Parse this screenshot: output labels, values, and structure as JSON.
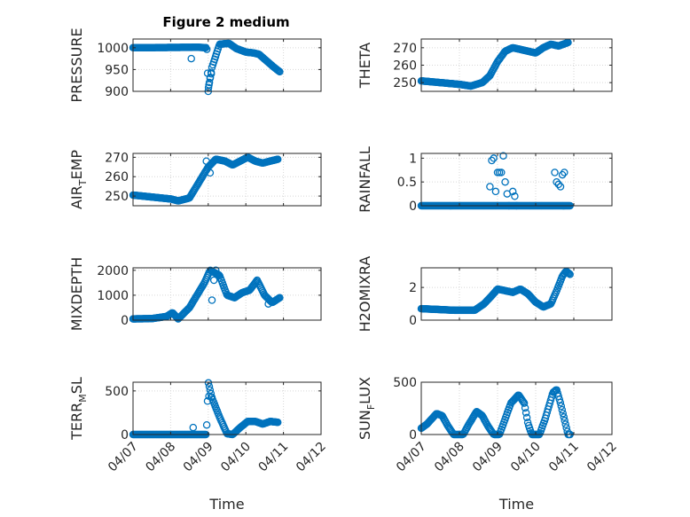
{
  "figure": {
    "title": "Figure 2 medium",
    "marker_color": "#0072BD"
  },
  "chart_data": [
    {
      "type": "scatter",
      "title": "Figure 2 medium",
      "ylabel": "PRESSURE",
      "ylabel_main": "PRESSURE",
      "ylabel_sub": "",
      "ylabel_tail": "",
      "xlabel": "",
      "xlim": [
        0,
        5
      ],
      "ylim": [
        900,
        1020
      ],
      "yticks": [
        900,
        950,
        1000
      ],
      "xticks": [
        "04/07",
        "04/08",
        "04/09",
        "04/10",
        "04/11",
        "04/12"
      ],
      "grid": true,
      "x_tick_labels_shown": false,
      "keys": [
        [
          0,
          1000
        ],
        [
          1.6,
          1001
        ],
        [
          1.75,
          1001
        ],
        [
          1.96,
          1000
        ],
        [
          2.0,
          905
        ],
        [
          2.1,
          955
        ],
        [
          2.3,
          1008
        ],
        [
          2.55,
          1010
        ],
        [
          2.75,
          998
        ],
        [
          3.0,
          990
        ],
        [
          3.2,
          988
        ],
        [
          3.35,
          985
        ],
        [
          3.55,
          970
        ],
        [
          3.75,
          955
        ],
        [
          3.9,
          945
        ]
      ],
      "extra": [
        [
          1.55,
          975
        ],
        [
          2.02,
          915
        ],
        [
          2.05,
          930
        ],
        [
          2.0,
          900
        ],
        [
          2.08,
          940
        ]
      ]
    },
    {
      "type": "scatter",
      "title": "",
      "ylabel": "THETA",
      "ylabel_main": "THETA",
      "ylabel_sub": "",
      "ylabel_tail": "",
      "xlabel": "",
      "xlim": [
        0,
        5
      ],
      "ylim": [
        245,
        275
      ],
      "yticks": [
        250,
        260,
        270
      ],
      "xticks": [
        "04/07",
        "04/08",
        "04/09",
        "04/10",
        "04/11",
        "04/12"
      ],
      "grid": true,
      "x_tick_labels_shown": false,
      "keys": [
        [
          0,
          251
        ],
        [
          0.5,
          250
        ],
        [
          1.0,
          249
        ],
        [
          1.3,
          248
        ],
        [
          1.6,
          250
        ],
        [
          1.8,
          254
        ],
        [
          2.0,
          262
        ],
        [
          2.2,
          268
        ],
        [
          2.4,
          270
        ],
        [
          2.6,
          269
        ],
        [
          2.8,
          268
        ],
        [
          3.0,
          267
        ],
        [
          3.2,
          270
        ],
        [
          3.4,
          272
        ],
        [
          3.6,
          271
        ],
        [
          3.85,
          273
        ]
      ],
      "extra": []
    },
    {
      "type": "scatter",
      "title": "",
      "ylabel": "AIR_TEMP",
      "ylabel_main": "AIR",
      "ylabel_sub": "T",
      "ylabel_tail": "EMP",
      "xlabel": "",
      "xlim": [
        0,
        5
      ],
      "ylim": [
        245,
        272
      ],
      "yticks": [
        250,
        260,
        270
      ],
      "xticks": [
        "04/07",
        "04/08",
        "04/09",
        "04/10",
        "04/11",
        "04/12"
      ],
      "grid": true,
      "x_tick_labels_shown": false,
      "keys": [
        [
          0,
          250.5
        ],
        [
          0.5,
          249.5
        ],
        [
          1.0,
          248.5
        ],
        [
          1.2,
          247.5
        ],
        [
          1.5,
          249
        ],
        [
          1.75,
          257
        ],
        [
          2.0,
          265
        ],
        [
          2.2,
          269
        ],
        [
          2.45,
          268
        ],
        [
          2.65,
          266
        ],
        [
          2.85,
          268
        ],
        [
          3.05,
          270
        ],
        [
          3.25,
          268
        ],
        [
          3.45,
          267
        ],
        [
          3.65,
          268
        ],
        [
          3.85,
          269
        ]
      ],
      "extra": [
        [
          1.95,
          268
        ],
        [
          2.05,
          262
        ]
      ]
    },
    {
      "type": "scatter",
      "title": "",
      "ylabel": "RAINFALL",
      "ylabel_main": "RAINFALL",
      "ylabel_sub": "",
      "ylabel_tail": "",
      "xlabel": "",
      "xlim": [
        0,
        5
      ],
      "ylim": [
        0,
        1.1
      ],
      "yticks": [
        0,
        0.5,
        1
      ],
      "xticks": [
        "04/07",
        "04/08",
        "04/09",
        "04/10",
        "04/11",
        "04/12"
      ],
      "grid": true,
      "x_tick_labels_shown": false,
      "keys": [
        [
          0,
          0
        ],
        [
          3.9,
          0
        ]
      ],
      "extra": [
        [
          1.8,
          0.4
        ],
        [
          1.85,
          0.95
        ],
        [
          1.9,
          1.0
        ],
        [
          1.95,
          0.3
        ],
        [
          2.0,
          0.7
        ],
        [
          2.05,
          0.7
        ],
        [
          2.1,
          0.7
        ],
        [
          2.15,
          1.05
        ],
        [
          2.2,
          0.5
        ],
        [
          2.25,
          0.25
        ],
        [
          2.3,
          0.0
        ],
        [
          2.4,
          0.3
        ],
        [
          2.45,
          0.2
        ],
        [
          2.5,
          0.0
        ],
        [
          3.5,
          0.7
        ],
        [
          3.55,
          0.5
        ],
        [
          3.6,
          0.45
        ],
        [
          3.65,
          0.4
        ],
        [
          3.7,
          0.65
        ],
        [
          3.75,
          0.7
        ]
      ]
    },
    {
      "type": "scatter",
      "title": "",
      "ylabel": "MIXDEPTH",
      "ylabel_main": "MIXDEPTH",
      "ylabel_sub": "",
      "ylabel_tail": "",
      "xlabel": "",
      "xlim": [
        0,
        5
      ],
      "ylim": [
        0,
        2100
      ],
      "yticks": [
        0,
        1000,
        2000
      ],
      "xticks": [
        "04/07",
        "04/08",
        "04/09",
        "04/10",
        "04/11",
        "04/12"
      ],
      "grid": true,
      "x_tick_labels_shown": false,
      "keys": [
        [
          0,
          50
        ],
        [
          0.5,
          60
        ],
        [
          0.9,
          150
        ],
        [
          1.05,
          300
        ],
        [
          1.2,
          50
        ],
        [
          1.5,
          500
        ],
        [
          1.7,
          1000
        ],
        [
          1.9,
          1500
        ],
        [
          2.05,
          2000
        ],
        [
          2.3,
          1800
        ],
        [
          2.5,
          1000
        ],
        [
          2.7,
          900
        ],
        [
          2.9,
          1100
        ],
        [
          3.1,
          1200
        ],
        [
          3.3,
          1600
        ],
        [
          3.5,
          1000
        ],
        [
          3.7,
          700
        ],
        [
          3.9,
          900
        ]
      ],
      "extra": [
        [
          2.1,
          800
        ],
        [
          2.15,
          1600
        ],
        [
          2.2,
          2000
        ],
        [
          3.6,
          650
        ]
      ]
    },
    {
      "type": "scatter",
      "title": "",
      "ylabel": "H2OMIXRA",
      "ylabel_main": "H2OMIXRA",
      "ylabel_sub": "",
      "ylabel_tail": "",
      "xlabel": "",
      "xlim": [
        0,
        5
      ],
      "ylim": [
        0,
        3.2
      ],
      "yticks": [
        0,
        2
      ],
      "xticks": [
        "04/07",
        "04/08",
        "04/09",
        "04/10",
        "04/11",
        "04/12"
      ],
      "grid": true,
      "x_tick_labels_shown": false,
      "keys": [
        [
          0,
          0.7
        ],
        [
          0.9,
          0.6
        ],
        [
          1.4,
          0.6
        ],
        [
          1.65,
          1.0
        ],
        [
          1.85,
          1.5
        ],
        [
          2.0,
          1.9
        ],
        [
          2.2,
          1.8
        ],
        [
          2.4,
          1.7
        ],
        [
          2.6,
          1.9
        ],
        [
          2.8,
          1.6
        ],
        [
          3.0,
          1.1
        ],
        [
          3.2,
          0.8
        ],
        [
          3.4,
          1.0
        ],
        [
          3.55,
          1.8
        ],
        [
          3.7,
          2.7
        ],
        [
          3.8,
          3.0
        ],
        [
          3.9,
          2.8
        ]
      ],
      "extra": []
    },
    {
      "type": "scatter",
      "title": "",
      "ylabel": "TERR_MSL",
      "ylabel_main": "TERR",
      "ylabel_sub": "M",
      "ylabel_tail": "SL",
      "xlabel": "Time",
      "xlim": [
        0,
        5
      ],
      "ylim": [
        0,
        600
      ],
      "yticks": [
        0,
        500
      ],
      "xticks": [
        "04/07",
        "04/08",
        "04/09",
        "04/10",
        "04/11",
        "04/12"
      ],
      "grid": true,
      "x_tick_labels_shown": true,
      "keys": [
        [
          0,
          0
        ],
        [
          1.95,
          0
        ],
        [
          2.0,
          600
        ],
        [
          2.1,
          420
        ],
        [
          2.3,
          200
        ],
        [
          2.5,
          10
        ],
        [
          2.65,
          0
        ],
        [
          2.85,
          80
        ],
        [
          3.05,
          150
        ],
        [
          3.25,
          150
        ],
        [
          3.45,
          120
        ],
        [
          3.65,
          150
        ],
        [
          3.85,
          140
        ]
      ],
      "extra": [
        [
          1.6,
          80
        ],
        [
          2.02,
          440
        ],
        [
          2.08,
          430
        ]
      ]
    },
    {
      "type": "scatter",
      "title": "",
      "ylabel": "SUN_FLUX",
      "ylabel_main": "SUN",
      "ylabel_sub": "F",
      "ylabel_tail": "LUX",
      "xlabel": "Time",
      "xlim": [
        0,
        5
      ],
      "ylim": [
        0,
        500
      ],
      "yticks": [
        0,
        500
      ],
      "xticks": [
        "04/07",
        "04/08",
        "04/09",
        "04/10",
        "04/11",
        "04/12"
      ],
      "grid": true,
      "x_tick_labels_shown": true,
      "keys": [
        [
          0,
          60
        ],
        [
          0.15,
          100
        ],
        [
          0.4,
          200
        ],
        [
          0.55,
          180
        ],
        [
          0.7,
          80
        ],
        [
          0.85,
          0
        ],
        [
          1.1,
          0
        ],
        [
          1.25,
          100
        ],
        [
          1.45,
          220
        ],
        [
          1.6,
          180
        ],
        [
          1.75,
          80
        ],
        [
          1.9,
          0
        ],
        [
          2.05,
          0
        ],
        [
          2.2,
          150
        ],
        [
          2.35,
          300
        ],
        [
          2.55,
          380
        ],
        [
          2.7,
          300
        ],
        [
          2.8,
          100
        ],
        [
          2.9,
          0
        ],
        [
          3.1,
          0
        ],
        [
          3.25,
          150
        ],
        [
          3.45,
          400
        ],
        [
          3.55,
          430
        ],
        [
          3.65,
          300
        ],
        [
          3.75,
          150
        ],
        [
          3.85,
          0
        ],
        [
          3.9,
          0
        ]
      ],
      "extra": []
    }
  ]
}
